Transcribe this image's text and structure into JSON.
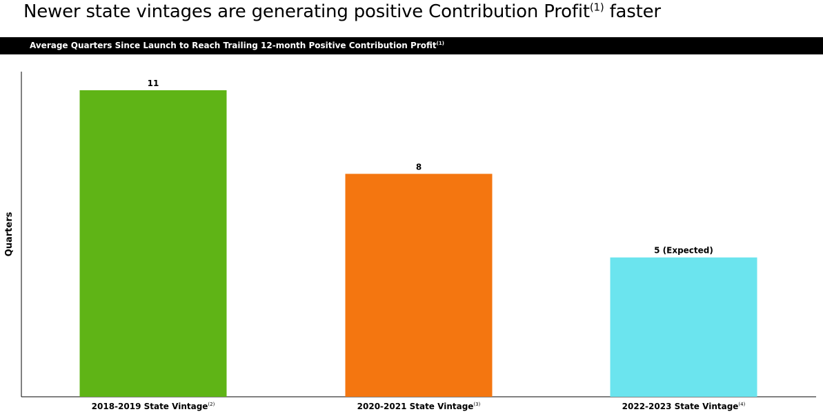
{
  "headline": {
    "text": "Newer state vintages are generating positive Contribution Profit",
    "footnote": "(1)",
    "suffix": " faster"
  },
  "banner": {
    "text": "Average Quarters Since Launch to Reach Trailing 12-month Positive Contribution Profit",
    "footnote": "(1)"
  },
  "chart_data": {
    "type": "bar",
    "title": "Average Quarters Since Launch to Reach Trailing 12-month Positive Contribution Profit",
    "xlabel": "",
    "ylabel": "Quarters",
    "ylim": [
      0,
      12
    ],
    "grid": false,
    "categories": [
      "2018-2019 State Vintage",
      "2020-2021 State Vintage",
      "2022-2023 State Vintage"
    ],
    "category_footnotes": [
      "(2)",
      "(3)",
      "(4)"
    ],
    "values": [
      11,
      8,
      5
    ],
    "data_labels": [
      "11",
      "8",
      "5 (Expected)"
    ],
    "colors": [
      "#5fb416",
      "#f47610",
      "#6be4ee"
    ]
  }
}
